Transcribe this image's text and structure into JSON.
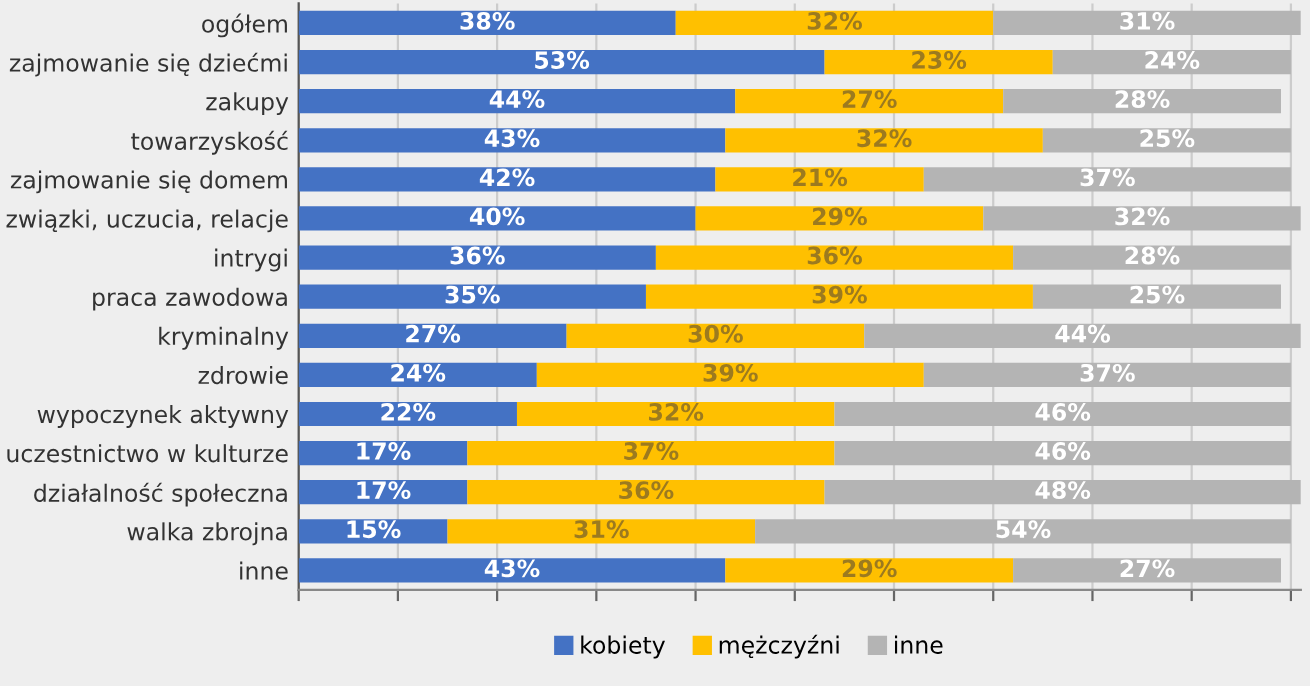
{
  "chart_data": {
    "type": "bar",
    "orientation": "horizontal",
    "stacked": true,
    "data_labels": true,
    "grid": "x",
    "legend": "bottom",
    "categories": [
      "ogółem",
      "zajmowanie się dziećmi",
      "zakupy",
      "towarzyskość",
      "zajmowanie się domem",
      "związki, uczucia, relacje",
      "intrygi",
      "praca zawodowa",
      "kryminalny",
      "zdrowie",
      "wypoczynek aktywny",
      "uczestnictwo w kulturze",
      "działalność społeczna",
      "walka zbrojna",
      "inne"
    ],
    "xlim": [
      0,
      101
    ],
    "xticks": [
      {
        "value": 0,
        "label": null
      },
      {
        "value": 10,
        "label": null
      },
      {
        "value": 20,
        "label": null
      },
      {
        "value": 30,
        "label": null
      },
      {
        "value": 40,
        "label": null
      },
      {
        "value": 50,
        "label": null
      },
      {
        "value": 60,
        "label": null
      },
      {
        "value": 70,
        "label": null
      },
      {
        "value": 80,
        "label": null
      },
      {
        "value": 90,
        "label": null
      },
      {
        "value": 100,
        "label": null
      }
    ],
    "tick_labels": "y",
    "series": [
      {
        "name": "kobiety",
        "color": "#4472c4",
        "values": [
          38,
          53,
          44,
          43,
          42,
          40,
          36,
          35,
          27,
          24,
          22,
          17,
          17,
          15,
          43
        ],
        "value_labels": [
          "38%",
          "53%",
          "44%",
          "43%",
          "42%",
          "40%",
          "36%",
          "35%",
          "27%",
          "24%",
          "22%",
          "17%",
          "17%",
          "15%",
          "43%"
        ]
      },
      {
        "name": "mężczyźni",
        "color": "#ffc000",
        "values": [
          32,
          23,
          27,
          32,
          21,
          29,
          36,
          39,
          30,
          39,
          32,
          37,
          36,
          31,
          29
        ],
        "value_labels": [
          "32%",
          "23%",
          "27%",
          "32%",
          "21%",
          "29%",
          "36%",
          "39%",
          "30%",
          "39%",
          "32%",
          "37%",
          "36%",
          "31%",
          "29%"
        ]
      },
      {
        "name": "inne",
        "color": "#b4b4b4",
        "values": [
          31,
          24,
          28,
          25,
          37,
          32,
          28,
          25,
          44,
          37,
          46,
          46,
          48,
          54,
          27
        ],
        "value_labels": [
          "31%",
          "24%",
          "28%",
          "25%",
          "37%",
          "32%",
          "28%",
          "25%",
          "44%",
          "37%",
          "46%",
          "46%",
          "48%",
          "54%",
          "27%"
        ]
      }
    ]
  }
}
